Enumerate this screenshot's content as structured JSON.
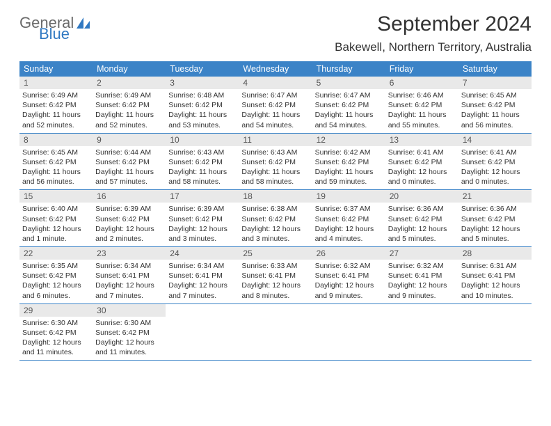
{
  "brand": {
    "name1": "General",
    "name2": "Blue"
  },
  "title": "September 2024",
  "location": "Bakewell, Northern Territory, Australia",
  "colors": {
    "header_bg": "#3b83c7",
    "daynum_bg": "#e9e9e9",
    "rule": "#3b83c7"
  },
  "weekdays": [
    "Sunday",
    "Monday",
    "Tuesday",
    "Wednesday",
    "Thursday",
    "Friday",
    "Saturday"
  ],
  "days": [
    {
      "n": "1",
      "sunrise": "Sunrise: 6:49 AM",
      "sunset": "Sunset: 6:42 PM",
      "daylight": "Daylight: 11 hours and 52 minutes."
    },
    {
      "n": "2",
      "sunrise": "Sunrise: 6:49 AM",
      "sunset": "Sunset: 6:42 PM",
      "daylight": "Daylight: 11 hours and 52 minutes."
    },
    {
      "n": "3",
      "sunrise": "Sunrise: 6:48 AM",
      "sunset": "Sunset: 6:42 PM",
      "daylight": "Daylight: 11 hours and 53 minutes."
    },
    {
      "n": "4",
      "sunrise": "Sunrise: 6:47 AM",
      "sunset": "Sunset: 6:42 PM",
      "daylight": "Daylight: 11 hours and 54 minutes."
    },
    {
      "n": "5",
      "sunrise": "Sunrise: 6:47 AM",
      "sunset": "Sunset: 6:42 PM",
      "daylight": "Daylight: 11 hours and 54 minutes."
    },
    {
      "n": "6",
      "sunrise": "Sunrise: 6:46 AM",
      "sunset": "Sunset: 6:42 PM",
      "daylight": "Daylight: 11 hours and 55 minutes."
    },
    {
      "n": "7",
      "sunrise": "Sunrise: 6:45 AM",
      "sunset": "Sunset: 6:42 PM",
      "daylight": "Daylight: 11 hours and 56 minutes."
    },
    {
      "n": "8",
      "sunrise": "Sunrise: 6:45 AM",
      "sunset": "Sunset: 6:42 PM",
      "daylight": "Daylight: 11 hours and 56 minutes."
    },
    {
      "n": "9",
      "sunrise": "Sunrise: 6:44 AM",
      "sunset": "Sunset: 6:42 PM",
      "daylight": "Daylight: 11 hours and 57 minutes."
    },
    {
      "n": "10",
      "sunrise": "Sunrise: 6:43 AM",
      "sunset": "Sunset: 6:42 PM",
      "daylight": "Daylight: 11 hours and 58 minutes."
    },
    {
      "n": "11",
      "sunrise": "Sunrise: 6:43 AM",
      "sunset": "Sunset: 6:42 PM",
      "daylight": "Daylight: 11 hours and 58 minutes."
    },
    {
      "n": "12",
      "sunrise": "Sunrise: 6:42 AM",
      "sunset": "Sunset: 6:42 PM",
      "daylight": "Daylight: 11 hours and 59 minutes."
    },
    {
      "n": "13",
      "sunrise": "Sunrise: 6:41 AM",
      "sunset": "Sunset: 6:42 PM",
      "daylight": "Daylight: 12 hours and 0 minutes."
    },
    {
      "n": "14",
      "sunrise": "Sunrise: 6:41 AM",
      "sunset": "Sunset: 6:42 PM",
      "daylight": "Daylight: 12 hours and 0 minutes."
    },
    {
      "n": "15",
      "sunrise": "Sunrise: 6:40 AM",
      "sunset": "Sunset: 6:42 PM",
      "daylight": "Daylight: 12 hours and 1 minute."
    },
    {
      "n": "16",
      "sunrise": "Sunrise: 6:39 AM",
      "sunset": "Sunset: 6:42 PM",
      "daylight": "Daylight: 12 hours and 2 minutes."
    },
    {
      "n": "17",
      "sunrise": "Sunrise: 6:39 AM",
      "sunset": "Sunset: 6:42 PM",
      "daylight": "Daylight: 12 hours and 3 minutes."
    },
    {
      "n": "18",
      "sunrise": "Sunrise: 6:38 AM",
      "sunset": "Sunset: 6:42 PM",
      "daylight": "Daylight: 12 hours and 3 minutes."
    },
    {
      "n": "19",
      "sunrise": "Sunrise: 6:37 AM",
      "sunset": "Sunset: 6:42 PM",
      "daylight": "Daylight: 12 hours and 4 minutes."
    },
    {
      "n": "20",
      "sunrise": "Sunrise: 6:36 AM",
      "sunset": "Sunset: 6:42 PM",
      "daylight": "Daylight: 12 hours and 5 minutes."
    },
    {
      "n": "21",
      "sunrise": "Sunrise: 6:36 AM",
      "sunset": "Sunset: 6:42 PM",
      "daylight": "Daylight: 12 hours and 5 minutes."
    },
    {
      "n": "22",
      "sunrise": "Sunrise: 6:35 AM",
      "sunset": "Sunset: 6:42 PM",
      "daylight": "Daylight: 12 hours and 6 minutes."
    },
    {
      "n": "23",
      "sunrise": "Sunrise: 6:34 AM",
      "sunset": "Sunset: 6:41 PM",
      "daylight": "Daylight: 12 hours and 7 minutes."
    },
    {
      "n": "24",
      "sunrise": "Sunrise: 6:34 AM",
      "sunset": "Sunset: 6:41 PM",
      "daylight": "Daylight: 12 hours and 7 minutes."
    },
    {
      "n": "25",
      "sunrise": "Sunrise: 6:33 AM",
      "sunset": "Sunset: 6:41 PM",
      "daylight": "Daylight: 12 hours and 8 minutes."
    },
    {
      "n": "26",
      "sunrise": "Sunrise: 6:32 AM",
      "sunset": "Sunset: 6:41 PM",
      "daylight": "Daylight: 12 hours and 9 minutes."
    },
    {
      "n": "27",
      "sunrise": "Sunrise: 6:32 AM",
      "sunset": "Sunset: 6:41 PM",
      "daylight": "Daylight: 12 hours and 9 minutes."
    },
    {
      "n": "28",
      "sunrise": "Sunrise: 6:31 AM",
      "sunset": "Sunset: 6:41 PM",
      "daylight": "Daylight: 12 hours and 10 minutes."
    },
    {
      "n": "29",
      "sunrise": "Sunrise: 6:30 AM",
      "sunset": "Sunset: 6:42 PM",
      "daylight": "Daylight: 12 hours and 11 minutes."
    },
    {
      "n": "30",
      "sunrise": "Sunrise: 6:30 AM",
      "sunset": "Sunset: 6:42 PM",
      "daylight": "Daylight: 12 hours and 11 minutes."
    }
  ]
}
